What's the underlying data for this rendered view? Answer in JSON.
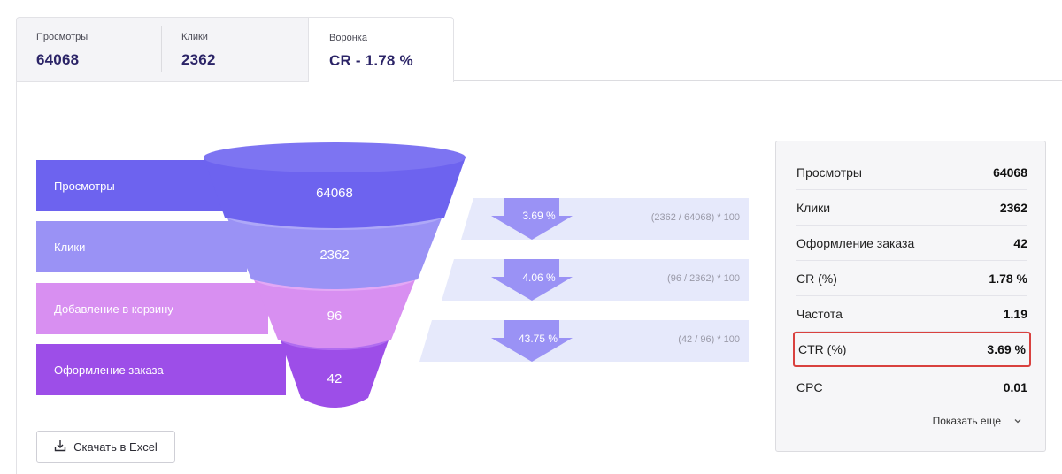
{
  "tabs": [
    {
      "label": "Просмотры",
      "value": "64068"
    },
    {
      "label": "Клики",
      "value": "2362"
    },
    {
      "label": "Воронка",
      "value": "CR - 1.78 %"
    }
  ],
  "funnel": {
    "stages": [
      {
        "label": "Просмотры",
        "value": "64068",
        "color": "#6d63ef"
      },
      {
        "label": "Клики",
        "value": "2362",
        "color": "#9a92f5"
      },
      {
        "label": "Добавление в корзину",
        "value": "96",
        "color": "#d88ff1"
      },
      {
        "label": "Оформление заказа",
        "value": "42",
        "color": "#9d4ee8"
      }
    ],
    "conversions": [
      {
        "percent": "3.69 %",
        "formula": "(2362 / 64068) * 100"
      },
      {
        "percent": "4.06 %",
        "formula": "(96 / 2362) * 100"
      },
      {
        "percent": "43.75 %",
        "formula": "(42 / 96) * 100"
      }
    ]
  },
  "download": {
    "label": "Скачать в Excel",
    "icon": "download-icon"
  },
  "stats": {
    "rows": [
      {
        "label": "Просмотры",
        "value": "64068"
      },
      {
        "label": "Клики",
        "value": "2362"
      },
      {
        "label": "Оформление заказа",
        "value": "42"
      },
      {
        "label": "CR (%)",
        "value": "1.78 %"
      },
      {
        "label": "Частота",
        "value": "1.19"
      },
      {
        "label": "CTR (%)",
        "value": "3.69 %"
      },
      {
        "label": "CPC",
        "value": "0.01"
      }
    ],
    "highlighted_row": "CTR (%)",
    "highlight_color": "#d9413f",
    "show_more_label": "Показать еще",
    "show_more_icon": "chevron-down-icon"
  },
  "colors": {
    "accent": "#2b2467",
    "conversion_band": "#e6e9fb",
    "conversion_arrow": "#9a92f5"
  }
}
